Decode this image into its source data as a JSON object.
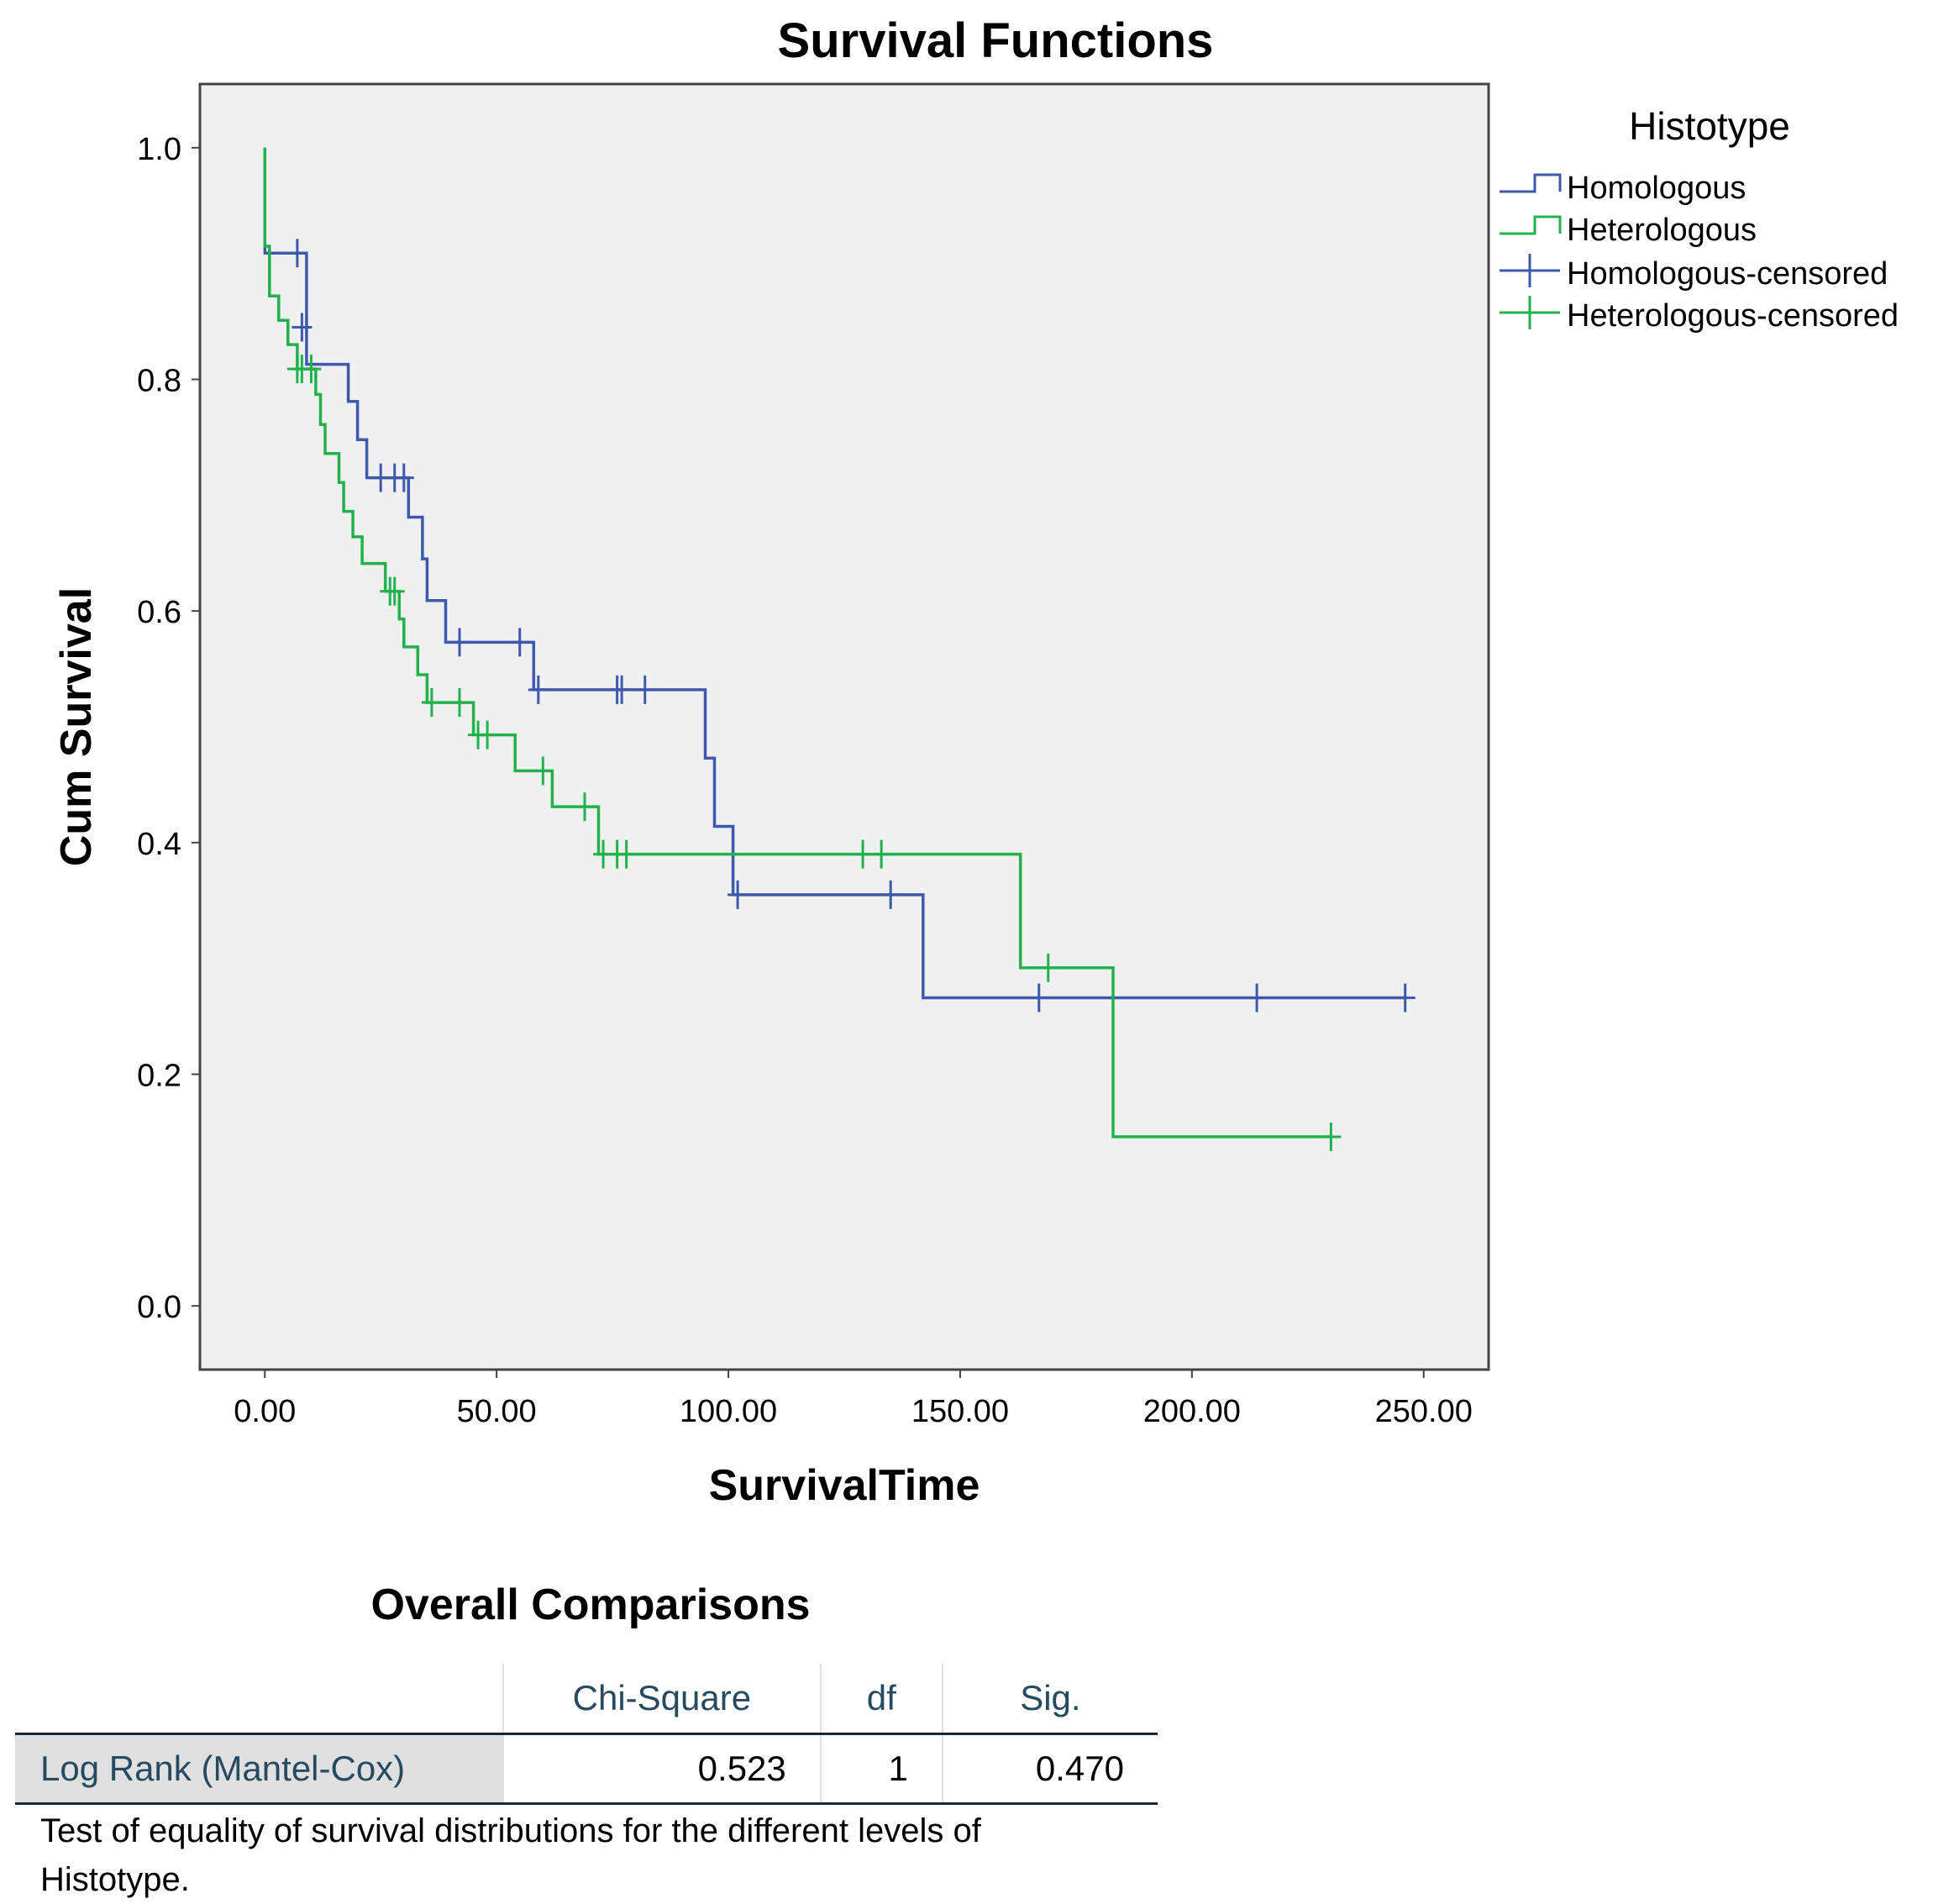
{
  "chart_data": {
    "type": "line",
    "title": "Survival Functions",
    "xlabel": "SurvivalTime",
    "ylabel": "Cum Survival",
    "xlim": [
      -14,
      264
    ],
    "ylim": [
      -0.055,
      1.055
    ],
    "xticks": [
      0,
      50,
      100,
      150,
      200,
      250
    ],
    "xtick_labels": [
      "0.00",
      "50.00",
      "100.00",
      "150.00",
      "200.00",
      "250.00"
    ],
    "yticks": [
      0.0,
      0.2,
      0.4,
      0.6,
      0.8,
      1.0
    ],
    "ytick_labels": [
      "0.0",
      "0.2",
      "0.4",
      "0.6",
      "0.8",
      "1.0"
    ],
    "grid": false,
    "legend_title": "Histotype",
    "legend_position": "top-right",
    "legend": [
      "Homologous",
      "Heterologous",
      "Homologous-censored",
      "Heterologous-censored"
    ],
    "series": [
      {
        "name": "Homologous",
        "color": "#3e58ac",
        "steps": [
          [
            0,
            1.0
          ],
          [
            0,
            0.909
          ],
          [
            9,
            0.909
          ],
          [
            9,
            0.813
          ],
          [
            18,
            0.813
          ],
          [
            18,
            0.781
          ],
          [
            20,
            0.781
          ],
          [
            20,
            0.748
          ],
          [
            22,
            0.748
          ],
          [
            22,
            0.715
          ],
          [
            31,
            0.715
          ],
          [
            31,
            0.681
          ],
          [
            34,
            0.681
          ],
          [
            34,
            0.645
          ],
          [
            35,
            0.645
          ],
          [
            35,
            0.609
          ],
          [
            39,
            0.609
          ],
          [
            39,
            0.573
          ],
          [
            58,
            0.573
          ],
          [
            58,
            0.532
          ],
          [
            95,
            0.532
          ],
          [
            95,
            0.473
          ],
          [
            97,
            0.473
          ],
          [
            97,
            0.414
          ],
          [
            101,
            0.414
          ],
          [
            101,
            0.355
          ],
          [
            142,
            0.355
          ],
          [
            142,
            0.266
          ],
          [
            246,
            0.266
          ]
        ],
        "censored": [
          [
            7,
            0.909
          ],
          [
            8,
            0.845
          ],
          [
            25,
            0.715
          ],
          [
            28,
            0.715
          ],
          [
            30,
            0.715
          ],
          [
            42,
            0.573
          ],
          [
            55,
            0.573
          ],
          [
            59,
            0.532
          ],
          [
            76,
            0.532
          ],
          [
            77,
            0.532
          ],
          [
            82,
            0.532
          ],
          [
            102,
            0.355
          ],
          [
            135,
            0.355
          ],
          [
            167,
            0.266
          ],
          [
            214,
            0.266
          ],
          [
            246,
            0.266
          ]
        ]
      },
      {
        "name": "Heterologous",
        "color": "#22b14c",
        "steps": [
          [
            0,
            1.0
          ],
          [
            0,
            0.915
          ],
          [
            1,
            0.915
          ],
          [
            1,
            0.872
          ],
          [
            3,
            0.872
          ],
          [
            3,
            0.851
          ],
          [
            5,
            0.851
          ],
          [
            5,
            0.83
          ],
          [
            7,
            0.83
          ],
          [
            7,
            0.809
          ],
          [
            11,
            0.809
          ],
          [
            11,
            0.787
          ],
          [
            12,
            0.787
          ],
          [
            12,
            0.761
          ],
          [
            13,
            0.761
          ],
          [
            13,
            0.736
          ],
          [
            16,
            0.736
          ],
          [
            16,
            0.711
          ],
          [
            17,
            0.711
          ],
          [
            17,
            0.686
          ],
          [
            19,
            0.686
          ],
          [
            19,
            0.664
          ],
          [
            21,
            0.664
          ],
          [
            21,
            0.641
          ],
          [
            26,
            0.641
          ],
          [
            26,
            0.617
          ],
          [
            29,
            0.617
          ],
          [
            29,
            0.593
          ],
          [
            30,
            0.593
          ],
          [
            30,
            0.569
          ],
          [
            33,
            0.569
          ],
          [
            33,
            0.545
          ],
          [
            35,
            0.545
          ],
          [
            35,
            0.521
          ],
          [
            45,
            0.521
          ],
          [
            45,
            0.493
          ],
          [
            54,
            0.493
          ],
          [
            54,
            0.462
          ],
          [
            62,
            0.462
          ],
          [
            62,
            0.431
          ],
          [
            72,
            0.431
          ],
          [
            72,
            0.39
          ],
          [
            163,
            0.39
          ],
          [
            163,
            0.292
          ],
          [
            183,
            0.292
          ],
          [
            183,
            0.146
          ],
          [
            230,
            0.146
          ]
        ],
        "censored": [
          [
            7,
            0.809
          ],
          [
            8,
            0.809
          ],
          [
            10,
            0.809
          ],
          [
            27,
            0.617
          ],
          [
            28,
            0.617
          ],
          [
            36,
            0.521
          ],
          [
            42,
            0.521
          ],
          [
            46,
            0.493
          ],
          [
            48,
            0.493
          ],
          [
            60,
            0.462
          ],
          [
            69,
            0.431
          ],
          [
            73,
            0.39
          ],
          [
            76,
            0.39
          ],
          [
            78,
            0.39
          ],
          [
            129,
            0.39
          ],
          [
            133,
            0.39
          ],
          [
            169,
            0.292
          ],
          [
            230,
            0.146
          ]
        ]
      }
    ]
  },
  "comparison_table": {
    "title": "Overall Comparisons",
    "headers": [
      "Chi-Square",
      "df",
      "Sig."
    ],
    "row_label": "Log Rank (Mantel-Cox)",
    "chi_square": "0.523",
    "df": "1",
    "sig": "0.470",
    "footnote": "Test of equality of survival distributions for the different levels of Histotype."
  }
}
